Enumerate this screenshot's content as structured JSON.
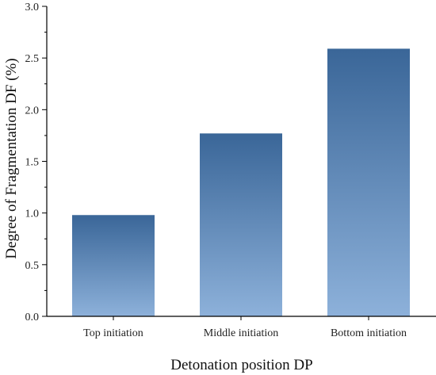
{
  "chart_data": {
    "type": "bar",
    "categories": [
      "Top initiation",
      "Middle initiation",
      "Bottom initiation"
    ],
    "values": [
      0.98,
      1.77,
      2.59
    ],
    "xlabel": "Detonation position DP",
    "ylabel": "Degree of Fragmentation DF (%)",
    "ylim": [
      0,
      3.0
    ],
    "yticks": [
      "0.0",
      "0.5",
      "1.0",
      "1.5",
      "2.0",
      "2.5",
      "3.0"
    ],
    "grid": false,
    "colors": {
      "bar_top": "#3a6698",
      "bar_bottom": "#8db1da",
      "axis": "#000000"
    }
  }
}
